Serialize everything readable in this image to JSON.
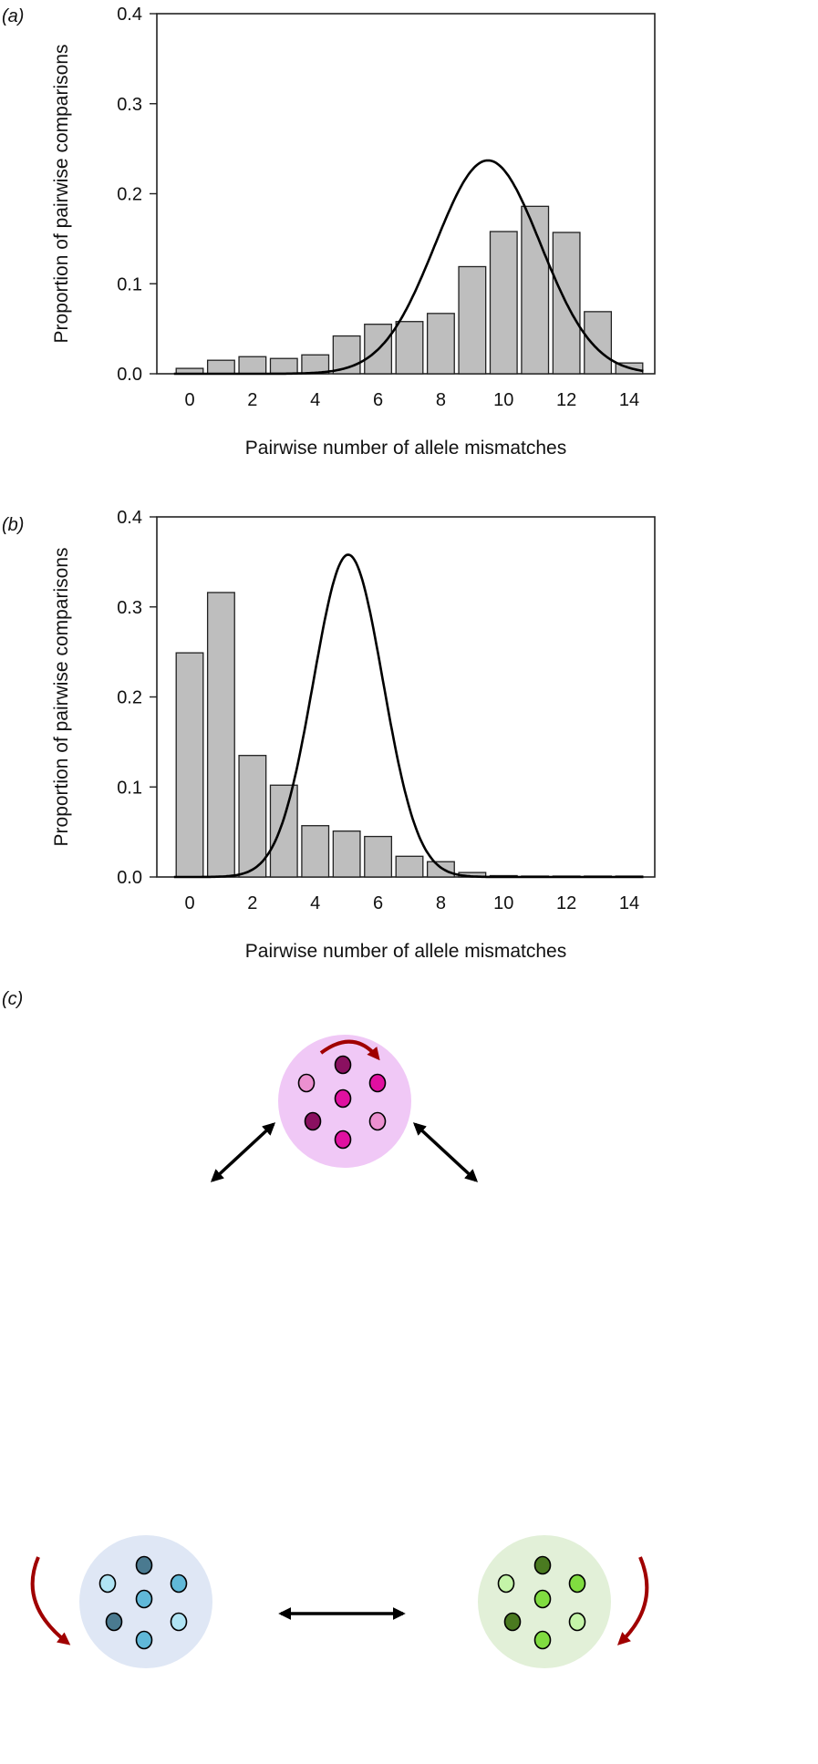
{
  "panels": {
    "a": {
      "label": "a"
    },
    "b": {
      "label": "b"
    },
    "c": {
      "label": "c"
    }
  },
  "chart_data": [
    {
      "type": "bar",
      "panel": "a",
      "xlabel": "Pairwise number of allele mismatches",
      "ylabel": "Proportion of pairwise comparisons",
      "categories": [
        0,
        1,
        2,
        3,
        4,
        5,
        6,
        7,
        8,
        9,
        10,
        11,
        12,
        13,
        14
      ],
      "x_tick_labels": [
        "0",
        "2",
        "4",
        "6",
        "8",
        "10",
        "12",
        "14"
      ],
      "y_tick_labels": [
        "0.0",
        "0.1",
        "0.2",
        "0.3",
        "0.4"
      ],
      "ylim": [
        0,
        0.4
      ],
      "values": [
        0.006,
        0.015,
        0.019,
        0.017,
        0.021,
        0.042,
        0.055,
        0.058,
        0.067,
        0.119,
        0.158,
        0.186,
        0.157,
        0.069,
        0.012
      ],
      "bar_color": "#bebebe",
      "overlay_curve": {
        "type": "normal",
        "mean": 9.5,
        "sd": 1.68,
        "peak": 0.237
      },
      "grid": false
    },
    {
      "type": "bar",
      "panel": "b",
      "xlabel": "Pairwise number of allele mismatches",
      "ylabel": "Proportion of pairwise comparisons",
      "categories": [
        0,
        1,
        2,
        3,
        4,
        5,
        6,
        7,
        8,
        9,
        10,
        11,
        12,
        13,
        14
      ],
      "x_tick_labels": [
        "0",
        "2",
        "4",
        "6",
        "8",
        "10",
        "12",
        "14"
      ],
      "y_tick_labels": [
        "0.0",
        "0.1",
        "0.2",
        "0.3",
        "0.4"
      ],
      "ylim": [
        0,
        0.4
      ],
      "values": [
        0.249,
        0.316,
        0.135,
        0.102,
        0.057,
        0.051,
        0.045,
        0.023,
        0.017,
        0.005,
        0.001,
        0.0005,
        0.0005,
        0.0005,
        0.0005
      ],
      "bar_color": "#bebebe",
      "overlay_curve": {
        "type": "normal",
        "mean": 5.05,
        "sd": 1.11,
        "peak": 0.358
      },
      "grid": false
    }
  ],
  "diagram": {
    "populations": [
      {
        "name": "magenta",
        "bg": "#f0c8f6",
        "dots": [
          "#8a1060",
          "#ec90d0",
          "#e010a0",
          "#e010a0",
          "#8a1060",
          "#ec90d0",
          "#e010a0"
        ]
      },
      {
        "name": "blue",
        "bg": "#dfe7f5",
        "dots": [
          "#4a7a90",
          "#b0e4f4",
          "#60b8d8",
          "#60b8d8",
          "#4a7a90",
          "#b0e4f4",
          "#60b8d8"
        ]
      },
      {
        "name": "green",
        "bg": "#e2f0d8",
        "dots": [
          "#4a7a20",
          "#c4f4a8",
          "#80dc40",
          "#80dc40",
          "#4a7a20",
          "#c4f4a8",
          "#80dc40"
        ]
      }
    ],
    "self_arrow_color": "#a00000",
    "migration_arrow_color": "#000000"
  }
}
